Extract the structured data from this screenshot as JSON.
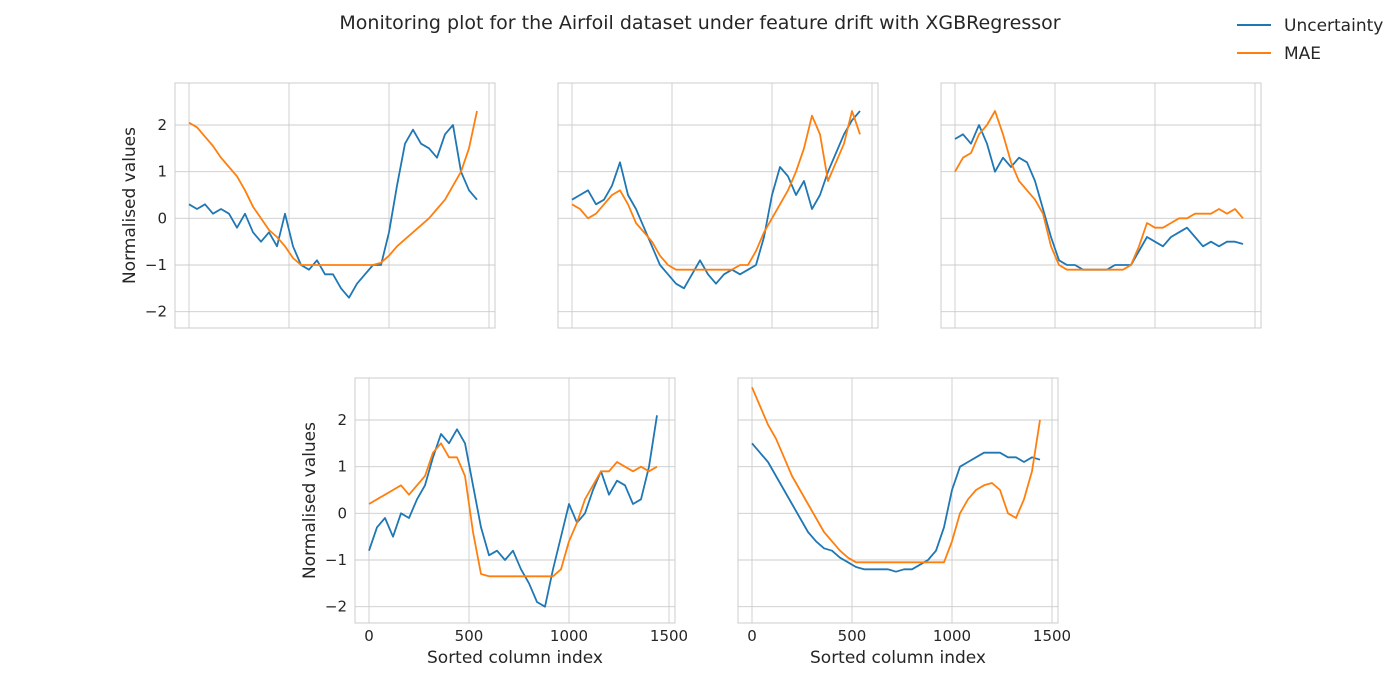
{
  "figure": {
    "title": "Monitoring plot for the Airfoil dataset under feature drift with XGBRegressor"
  },
  "legend": {
    "placement": "top-right",
    "entries": [
      {
        "label": "Uncertainty",
        "color": "#1f77b4"
      },
      {
        "label": "MAE",
        "color": "#ff7f0e"
      }
    ]
  },
  "chart_data": [
    {
      "type": "line",
      "panel": "top-left",
      "xlim": [
        -70,
        1530
      ],
      "ylim": [
        -2.35,
        2.9
      ],
      "xticks": [
        0,
        500,
        1000,
        1500
      ],
      "yticks": [
        -2,
        -1,
        0,
        1,
        2
      ],
      "show_xticklabels": false,
      "show_yticklabels": true,
      "xlabel": "",
      "ylabel": "Normalised values",
      "grid": true,
      "series": [
        {
          "name": "Uncertainty",
          "color": "#1f77b4",
          "x": [
            0,
            40,
            80,
            120,
            160,
            200,
            240,
            280,
            320,
            360,
            400,
            440,
            480,
            520,
            560,
            600,
            640,
            680,
            720,
            760,
            800,
            840,
            880,
            920,
            960,
            1000,
            1040,
            1080,
            1120,
            1160,
            1200,
            1240,
            1280,
            1320,
            1360,
            1400,
            1440
          ],
          "y": [
            0.3,
            0.2,
            0.3,
            0.1,
            0.2,
            0.1,
            -0.2,
            0.1,
            -0.3,
            -0.5,
            -0.3,
            -0.6,
            0.1,
            -0.6,
            -1.0,
            -1.1,
            -0.9,
            -1.2,
            -1.2,
            -1.5,
            -1.7,
            -1.4,
            -1.2,
            -1.0,
            -1.0,
            -0.3,
            0.7,
            1.6,
            1.9,
            1.6,
            1.5,
            1.3,
            1.8,
            2.0,
            1.0,
            0.6,
            0.4
          ]
        },
        {
          "name": "MAE",
          "color": "#ff7f0e",
          "x": [
            0,
            40,
            80,
            120,
            160,
            200,
            240,
            280,
            320,
            360,
            400,
            440,
            480,
            520,
            560,
            600,
            640,
            680,
            720,
            760,
            800,
            840,
            880,
            920,
            960,
            1000,
            1040,
            1080,
            1120,
            1160,
            1200,
            1240,
            1280,
            1320,
            1360,
            1400,
            1440
          ],
          "y": [
            2.05,
            1.95,
            1.75,
            1.55,
            1.3,
            1.1,
            0.9,
            0.6,
            0.25,
            0.0,
            -0.25,
            -0.4,
            -0.6,
            -0.85,
            -1.0,
            -1.0,
            -1.0,
            -1.0,
            -1.0,
            -1.0,
            -1.0,
            -1.0,
            -1.0,
            -1.0,
            -0.95,
            -0.8,
            -0.6,
            -0.45,
            -0.3,
            -0.15,
            0.0,
            0.2,
            0.4,
            0.7,
            1.0,
            1.5,
            2.3
          ]
        }
      ]
    },
    {
      "type": "line",
      "panel": "top-middle",
      "xlim": [
        -70,
        1530
      ],
      "ylim": [
        -2.35,
        2.9
      ],
      "xticks": [
        0,
        500,
        1000,
        1500
      ],
      "yticks": [
        -2,
        -1,
        0,
        1,
        2
      ],
      "show_xticklabels": false,
      "show_yticklabels": false,
      "xlabel": "",
      "ylabel": "",
      "grid": true,
      "series": [
        {
          "name": "Uncertainty",
          "color": "#1f77b4",
          "x": [
            0,
            40,
            80,
            120,
            160,
            200,
            240,
            280,
            320,
            360,
            400,
            440,
            480,
            520,
            560,
            600,
            640,
            680,
            720,
            760,
            800,
            840,
            880,
            920,
            960,
            1000,
            1040,
            1080,
            1120,
            1160,
            1200,
            1240,
            1280,
            1320,
            1360,
            1400,
            1440
          ],
          "y": [
            0.4,
            0.5,
            0.6,
            0.3,
            0.4,
            0.7,
            1.2,
            0.5,
            0.2,
            -0.2,
            -0.6,
            -1.0,
            -1.2,
            -1.4,
            -1.5,
            -1.2,
            -0.9,
            -1.2,
            -1.4,
            -1.2,
            -1.1,
            -1.2,
            -1.1,
            -1.0,
            -0.4,
            0.5,
            1.1,
            0.9,
            0.5,
            0.8,
            0.2,
            0.5,
            1.0,
            1.4,
            1.8,
            2.1,
            2.3
          ]
        },
        {
          "name": "MAE",
          "color": "#ff7f0e",
          "x": [
            0,
            40,
            80,
            120,
            160,
            200,
            240,
            280,
            320,
            360,
            400,
            440,
            480,
            520,
            560,
            600,
            640,
            680,
            720,
            760,
            800,
            840,
            880,
            920,
            960,
            1000,
            1040,
            1080,
            1120,
            1160,
            1200,
            1240,
            1280,
            1320,
            1360,
            1400,
            1440
          ],
          "y": [
            0.3,
            0.2,
            0.0,
            0.1,
            0.3,
            0.5,
            0.6,
            0.3,
            -0.1,
            -0.3,
            -0.5,
            -0.8,
            -1.0,
            -1.1,
            -1.1,
            -1.1,
            -1.1,
            -1.1,
            -1.1,
            -1.1,
            -1.1,
            -1.0,
            -1.0,
            -0.7,
            -0.3,
            0.0,
            0.3,
            0.6,
            1.0,
            1.5,
            2.2,
            1.8,
            0.8,
            1.2,
            1.6,
            2.3,
            1.8
          ]
        }
      ]
    },
    {
      "type": "line",
      "panel": "top-right",
      "xlim": [
        -70,
        1530
      ],
      "ylim": [
        -2.35,
        2.9
      ],
      "xticks": [
        0,
        500,
        1000,
        1500
      ],
      "yticks": [
        -2,
        -1,
        0,
        1,
        2
      ],
      "show_xticklabels": false,
      "show_yticklabels": false,
      "xlabel": "",
      "ylabel": "",
      "grid": true,
      "series": [
        {
          "name": "Uncertainty",
          "color": "#1f77b4",
          "x": [
            0,
            40,
            80,
            120,
            160,
            200,
            240,
            280,
            320,
            360,
            400,
            440,
            480,
            520,
            560,
            600,
            640,
            680,
            720,
            760,
            800,
            840,
            880,
            920,
            960,
            1000,
            1040,
            1080,
            1120,
            1160,
            1200,
            1240,
            1280,
            1320,
            1360,
            1400,
            1440
          ],
          "y": [
            1.7,
            1.8,
            1.6,
            2.0,
            1.6,
            1.0,
            1.3,
            1.1,
            1.3,
            1.2,
            0.8,
            0.2,
            -0.4,
            -0.9,
            -1.0,
            -1.0,
            -1.1,
            -1.1,
            -1.1,
            -1.1,
            -1.0,
            -1.0,
            -1.0,
            -0.7,
            -0.4,
            -0.5,
            -0.6,
            -0.4,
            -0.3,
            -0.2,
            -0.4,
            -0.6,
            -0.5,
            -0.6,
            -0.5,
            -0.5,
            -0.55
          ]
        },
        {
          "name": "MAE",
          "color": "#ff7f0e",
          "x": [
            0,
            40,
            80,
            120,
            160,
            200,
            240,
            280,
            320,
            360,
            400,
            440,
            480,
            520,
            560,
            600,
            640,
            680,
            720,
            760,
            800,
            840,
            880,
            920,
            960,
            1000,
            1040,
            1080,
            1120,
            1160,
            1200,
            1240,
            1280,
            1320,
            1360,
            1400,
            1440
          ],
          "y": [
            1.0,
            1.3,
            1.4,
            1.8,
            2.0,
            2.3,
            1.8,
            1.2,
            0.8,
            0.6,
            0.4,
            0.1,
            -0.6,
            -1.0,
            -1.1,
            -1.1,
            -1.1,
            -1.1,
            -1.1,
            -1.1,
            -1.1,
            -1.1,
            -1.0,
            -0.6,
            -0.1,
            -0.2,
            -0.2,
            -0.1,
            0.0,
            0.0,
            0.1,
            0.1,
            0.1,
            0.2,
            0.1,
            0.2,
            0.0
          ]
        }
      ]
    },
    {
      "type": "line",
      "panel": "bottom-left",
      "xlim": [
        -70,
        1530
      ],
      "ylim": [
        -2.35,
        2.9
      ],
      "xticks": [
        0,
        500,
        1000,
        1500
      ],
      "yticks": [
        -2,
        -1,
        0,
        1,
        2
      ],
      "show_xticklabels": true,
      "show_yticklabels": true,
      "xlabel": "Sorted column index",
      "ylabel": "Normalised values",
      "grid": true,
      "series": [
        {
          "name": "Uncertainty",
          "color": "#1f77b4",
          "x": [
            0,
            40,
            80,
            120,
            160,
            200,
            240,
            280,
            320,
            360,
            400,
            440,
            480,
            520,
            560,
            600,
            640,
            680,
            720,
            760,
            800,
            840,
            880,
            920,
            960,
            1000,
            1040,
            1080,
            1120,
            1160,
            1200,
            1240,
            1280,
            1320,
            1360,
            1400,
            1440
          ],
          "y": [
            -0.8,
            -0.3,
            -0.1,
            -0.5,
            0.0,
            -0.1,
            0.3,
            0.6,
            1.2,
            1.7,
            1.5,
            1.8,
            1.5,
            0.6,
            -0.3,
            -0.9,
            -0.8,
            -1.0,
            -0.8,
            -1.2,
            -1.5,
            -1.9,
            -2.0,
            -1.2,
            -0.5,
            0.2,
            -0.2,
            0.0,
            0.5,
            0.9,
            0.4,
            0.7,
            0.6,
            0.2,
            0.3,
            1.0,
            2.1
          ]
        },
        {
          "name": "MAE",
          "color": "#ff7f0e",
          "x": [
            0,
            40,
            80,
            120,
            160,
            200,
            240,
            280,
            320,
            360,
            400,
            440,
            480,
            520,
            560,
            600,
            640,
            680,
            720,
            760,
            800,
            840,
            880,
            920,
            960,
            1000,
            1040,
            1080,
            1120,
            1160,
            1200,
            1240,
            1280,
            1320,
            1360,
            1400,
            1440
          ],
          "y": [
            0.2,
            0.3,
            0.4,
            0.5,
            0.6,
            0.4,
            0.6,
            0.8,
            1.3,
            1.5,
            1.2,
            1.2,
            0.8,
            -0.4,
            -1.3,
            -1.35,
            -1.35,
            -1.35,
            -1.35,
            -1.35,
            -1.35,
            -1.35,
            -1.35,
            -1.35,
            -1.2,
            -0.6,
            -0.2,
            0.3,
            0.6,
            0.9,
            0.9,
            1.1,
            1.0,
            0.9,
            1.0,
            0.9,
            1.0
          ]
        }
      ]
    },
    {
      "type": "line",
      "panel": "bottom-right",
      "xlim": [
        -70,
        1530
      ],
      "ylim": [
        -2.35,
        2.9
      ],
      "xticks": [
        0,
        500,
        1000,
        1500
      ],
      "yticks": [
        -2,
        -1,
        0,
        1,
        2
      ],
      "show_xticklabels": true,
      "show_yticklabels": false,
      "xlabel": "Sorted column index",
      "ylabel": "",
      "grid": true,
      "series": [
        {
          "name": "Uncertainty",
          "color": "#1f77b4",
          "x": [
            0,
            40,
            80,
            120,
            160,
            200,
            240,
            280,
            320,
            360,
            400,
            440,
            480,
            520,
            560,
            600,
            640,
            680,
            720,
            760,
            800,
            840,
            880,
            920,
            960,
            1000,
            1040,
            1080,
            1120,
            1160,
            1200,
            1240,
            1280,
            1320,
            1360,
            1400,
            1440
          ],
          "y": [
            1.5,
            1.3,
            1.1,
            0.8,
            0.5,
            0.2,
            -0.1,
            -0.4,
            -0.6,
            -0.75,
            -0.8,
            -0.95,
            -1.05,
            -1.15,
            -1.2,
            -1.2,
            -1.2,
            -1.2,
            -1.25,
            -1.2,
            -1.2,
            -1.1,
            -1.0,
            -0.8,
            -0.3,
            0.5,
            1.0,
            1.1,
            1.2,
            1.3,
            1.3,
            1.3,
            1.2,
            1.2,
            1.1,
            1.2,
            1.15
          ]
        },
        {
          "name": "MAE",
          "color": "#ff7f0e",
          "x": [
            0,
            40,
            80,
            120,
            160,
            200,
            240,
            280,
            320,
            360,
            400,
            440,
            480,
            520,
            560,
            600,
            640,
            680,
            720,
            760,
            800,
            840,
            880,
            920,
            960,
            1000,
            1040,
            1080,
            1120,
            1160,
            1200,
            1240,
            1280,
            1320,
            1360,
            1400,
            1440
          ],
          "y": [
            2.7,
            2.3,
            1.9,
            1.6,
            1.2,
            0.8,
            0.5,
            0.2,
            -0.1,
            -0.4,
            -0.6,
            -0.8,
            -0.95,
            -1.05,
            -1.05,
            -1.05,
            -1.05,
            -1.05,
            -1.05,
            -1.05,
            -1.05,
            -1.05,
            -1.05,
            -1.05,
            -1.05,
            -0.6,
            0.0,
            0.3,
            0.5,
            0.6,
            0.65,
            0.5,
            0.0,
            -0.1,
            0.3,
            0.9,
            2.0
          ]
        }
      ]
    }
  ]
}
